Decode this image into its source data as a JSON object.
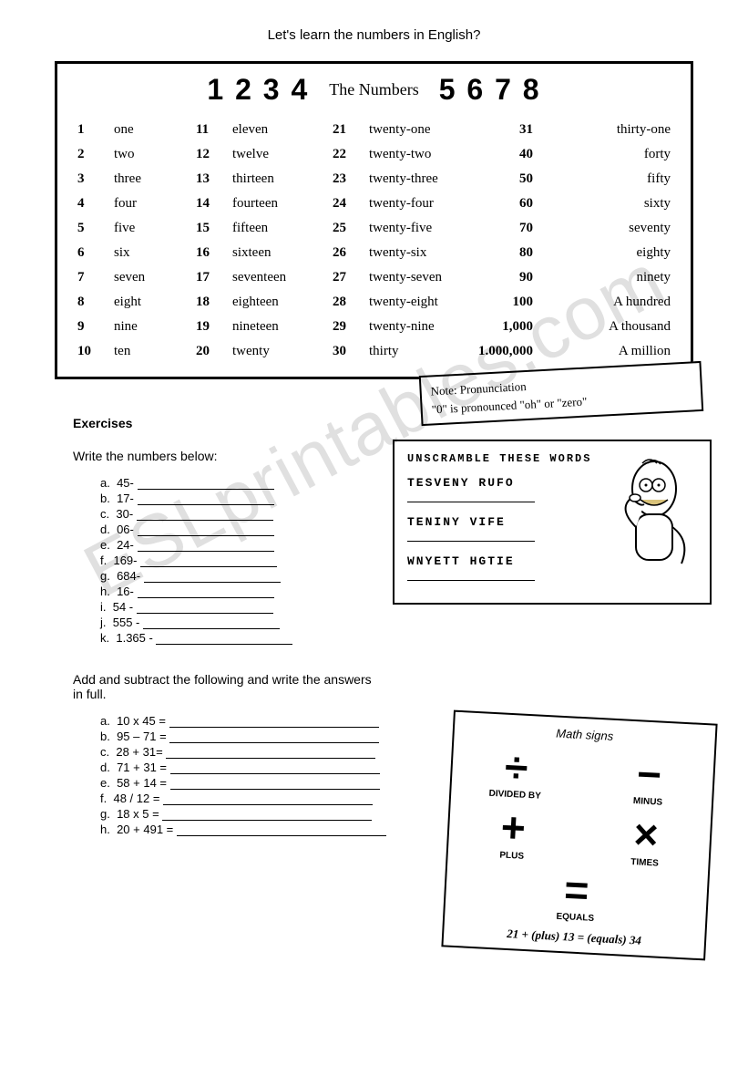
{
  "page": {
    "title": "Let's learn the numbers in English?"
  },
  "numbersBox": {
    "headerLeft": "1 2 3 4",
    "headerTitle": "The Numbers",
    "headerRight": "5 6 7 8",
    "rows": [
      {
        "n1": "1",
        "w1": "one",
        "n2": "11",
        "w2": "eleven",
        "n3": "21",
        "w3": "twenty-one",
        "n4": "31",
        "w4": "thirty-one"
      },
      {
        "n1": "2",
        "w1": "two",
        "n2": "12",
        "w2": "twelve",
        "n3": "22",
        "w3": "twenty-two",
        "n4": "40",
        "w4": "forty"
      },
      {
        "n1": "3",
        "w1": "three",
        "n2": "13",
        "w2": "thirteen",
        "n3": "23",
        "w3": "twenty-three",
        "n4": "50",
        "w4": "fifty"
      },
      {
        "n1": "4",
        "w1": "four",
        "n2": "14",
        "w2": "fourteen",
        "n3": "24",
        "w3": "twenty-four",
        "n4": "60",
        "w4": "sixty"
      },
      {
        "n1": "5",
        "w1": "five",
        "n2": "15",
        "w2": "fifteen",
        "n3": "25",
        "w3": "twenty-five",
        "n4": "70",
        "w4": "seventy"
      },
      {
        "n1": "6",
        "w1": "six",
        "n2": "16",
        "w2": "sixteen",
        "n3": "26",
        "w3": "twenty-six",
        "n4": "80",
        "w4": "eighty"
      },
      {
        "n1": "7",
        "w1": "seven",
        "n2": "17",
        "w2": "seventeen",
        "n3": "27",
        "w3": "twenty-seven",
        "n4": "90",
        "w4": "ninety"
      },
      {
        "n1": "8",
        "w1": "eight",
        "n2": "18",
        "w2": "eighteen",
        "n3": "28",
        "w3": "twenty-eight",
        "n4": "100",
        "w4": "A hundred"
      },
      {
        "n1": "9",
        "w1": "nine",
        "n2": "19",
        "w2": "nineteen",
        "n3": "29",
        "w3": "twenty-nine",
        "n4": "1,000",
        "w4": "A thousand"
      },
      {
        "n1": "10",
        "w1": "ten",
        "n2": "20",
        "w2": "twenty",
        "n3": "30",
        "w3": "thirty",
        "n4": "1.000,000",
        "w4": "A million"
      }
    ]
  },
  "note": {
    "line1": "Note: Pronunciation",
    "line2": "\"0\" is pronounced \"oh\" or \"zero\""
  },
  "exercises": {
    "title": "Exercises",
    "instruction1": "Write the numbers below:",
    "list1": [
      {
        "letter": "a.",
        "text": "45-"
      },
      {
        "letter": "b.",
        "text": "17-"
      },
      {
        "letter": "c.",
        "text": "30-"
      },
      {
        "letter": "d.",
        "text": "06-"
      },
      {
        "letter": "e.",
        "text": "24-"
      },
      {
        "letter": "f.",
        "text": "169-"
      },
      {
        "letter": "g.",
        "text": "684-"
      },
      {
        "letter": "h.",
        "text": "16-"
      },
      {
        "letter": "i.",
        "text": "54 -"
      },
      {
        "letter": "j.",
        "text": "555 -"
      },
      {
        "letter": "k.",
        "text": "1.365 -"
      }
    ],
    "instruction2": "Add and subtract the following and write the answers in full.",
    "list2": [
      {
        "letter": "a.",
        "text": "10 x 45 ="
      },
      {
        "letter": "b.",
        "text": "95 – 71 ="
      },
      {
        "letter": "c.",
        "text": "28 + 31="
      },
      {
        "letter": "d.",
        "text": "71 + 31 ="
      },
      {
        "letter": "e.",
        "text": "58 + 14 ="
      },
      {
        "letter": "f.",
        "text": "48 / 12 ="
      },
      {
        "letter": "g.",
        "text": "18 x 5 ="
      },
      {
        "letter": "h.",
        "text": "20 + 491 ="
      }
    ]
  },
  "unscramble": {
    "title": "UNSCRAMBLE THESE WORDS",
    "words": [
      "TESVENY RUFO",
      "TENINY VIFE",
      "WNYETT HGTIE"
    ]
  },
  "mathSigns": {
    "title": "Math signs",
    "items": [
      {
        "sym": "÷",
        "label": "DIVIDED BY"
      },
      {
        "sym": "−",
        "label": "MINUS"
      },
      {
        "sym": "+",
        "label": "PLUS"
      },
      {
        "sym": "×",
        "label": "TIMES"
      }
    ],
    "equals": {
      "sym": "=",
      "label": "EQUALS"
    },
    "example": "21 + (plus) 13 = (equals) 34"
  },
  "watermark": "ESLprintables.com"
}
